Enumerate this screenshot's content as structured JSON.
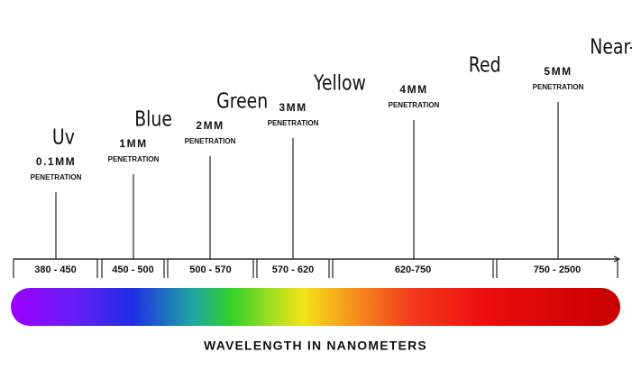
{
  "bands": [
    {
      "name": "Uv",
      "depth": "0.1MM",
      "penetration": "PENETRATION",
      "range": "380 - 450"
    },
    {
      "name": "Blue",
      "depth": "1MM",
      "penetration": "PENETRATION",
      "range": "450 - 500"
    },
    {
      "name": "Green",
      "depth": "2MM",
      "penetration": "PENETRATION",
      "range": "500 - 570"
    },
    {
      "name": "Yellow",
      "depth": "3MM",
      "penetration": "PENETRATION",
      "range": "570 - 620"
    },
    {
      "name": "Red",
      "depth": "4MM",
      "penetration": "PENETRATION",
      "range": "620-750"
    },
    {
      "name": "Near-Infrared",
      "depth": "5MM",
      "penetration": "PENETRATION",
      "range": "750 - 2500"
    }
  ],
  "axis_title": "WAVELENGTH IN NANOMETERS"
}
